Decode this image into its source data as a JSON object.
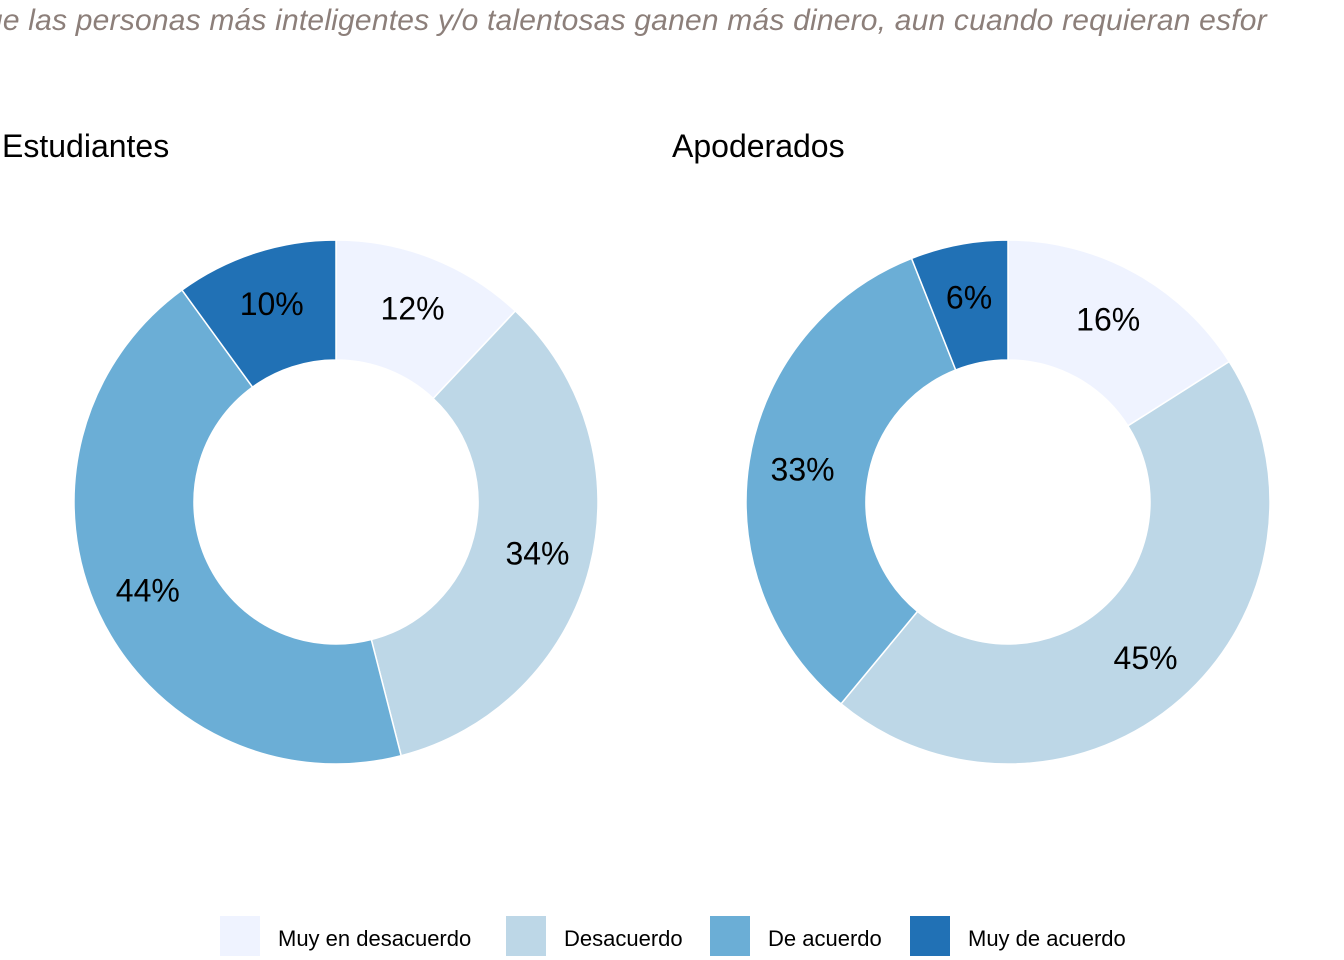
{
  "subtitle": "ue las personas más inteligentes y/o talentosas ganen más dinero, aun cuando requieran esfor",
  "legend": [
    {
      "label": "Muy en desacuerdo",
      "color": "#eff3ff"
    },
    {
      "label": "Desacuerdo",
      "color": "#bdd7e7"
    },
    {
      "label": "De acuerdo",
      "color": "#6baed6"
    },
    {
      "label": "Muy de acuerdo",
      "color": "#2171b5"
    }
  ],
  "chart_data": [
    {
      "type": "pie",
      "title": "Estudiantes",
      "donut": true,
      "categories": [
        "Muy en desacuerdo",
        "Desacuerdo",
        "De acuerdo",
        "Muy de acuerdo"
      ],
      "values": [
        12,
        34,
        44,
        10
      ],
      "labels": [
        "12%",
        "34%",
        "44%",
        "10%"
      ],
      "colors": [
        "#eff3ff",
        "#bdd7e7",
        "#6baed6",
        "#2171b5"
      ]
    },
    {
      "type": "pie",
      "title": "Apoderados",
      "donut": true,
      "categories": [
        "Muy en desacuerdo",
        "Desacuerdo",
        "De acuerdo",
        "Muy de acuerdo"
      ],
      "values": [
        16,
        45,
        33,
        6
      ],
      "labels": [
        "16%",
        "45%",
        "33%",
        "6%"
      ],
      "colors": [
        "#eff3ff",
        "#bdd7e7",
        "#6baed6",
        "#2171b5"
      ]
    }
  ]
}
